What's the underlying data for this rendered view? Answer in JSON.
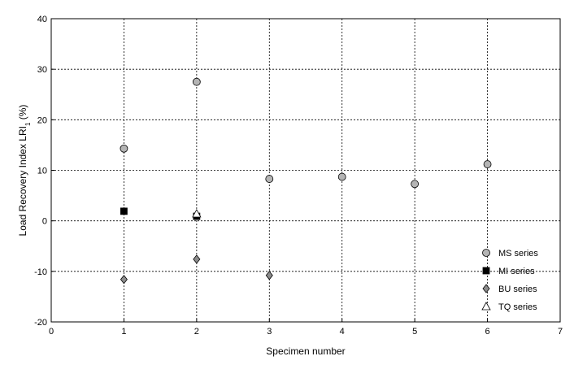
{
  "chart_data": {
    "type": "scatter",
    "xlabel": "Specimen number",
    "ylabel": "Load Recovery Index LRI",
    "ylabel_subscript": "1",
    "ylabel_unit": "(%)",
    "xlim": [
      0,
      7
    ],
    "ylim": [
      -20,
      40
    ],
    "xticks": [
      0,
      1,
      2,
      3,
      4,
      5,
      6,
      7
    ],
    "yticks": [
      -20,
      -10,
      0,
      10,
      20,
      30,
      40
    ],
    "grid": true,
    "legend_position": "bottom-right",
    "series": [
      {
        "name": "MS series",
        "marker": "circle",
        "fill": "#b4b4b4",
        "points": [
          {
            "x": 1,
            "y": 14.3
          },
          {
            "x": 2,
            "y": 27.5
          },
          {
            "x": 3,
            "y": 8.3
          },
          {
            "x": 4,
            "y": 8.7
          },
          {
            "x": 5,
            "y": 7.3
          },
          {
            "x": 6,
            "y": 11.2
          }
        ]
      },
      {
        "name": "MI series",
        "marker": "square",
        "fill": "#000000",
        "points": [
          {
            "x": 1,
            "y": 1.9
          },
          {
            "x": 2,
            "y": 0.9
          }
        ]
      },
      {
        "name": "BU series",
        "marker": "diamond",
        "fill": "#8c8c8c",
        "points": [
          {
            "x": 1,
            "y": -11.6
          },
          {
            "x": 2,
            "y": -7.6
          },
          {
            "x": 3,
            "y": -10.8
          }
        ]
      },
      {
        "name": "TQ series",
        "marker": "triangle",
        "fill": "#ffffff",
        "points": [
          {
            "x": 2,
            "y": 1.4
          }
        ]
      }
    ]
  }
}
